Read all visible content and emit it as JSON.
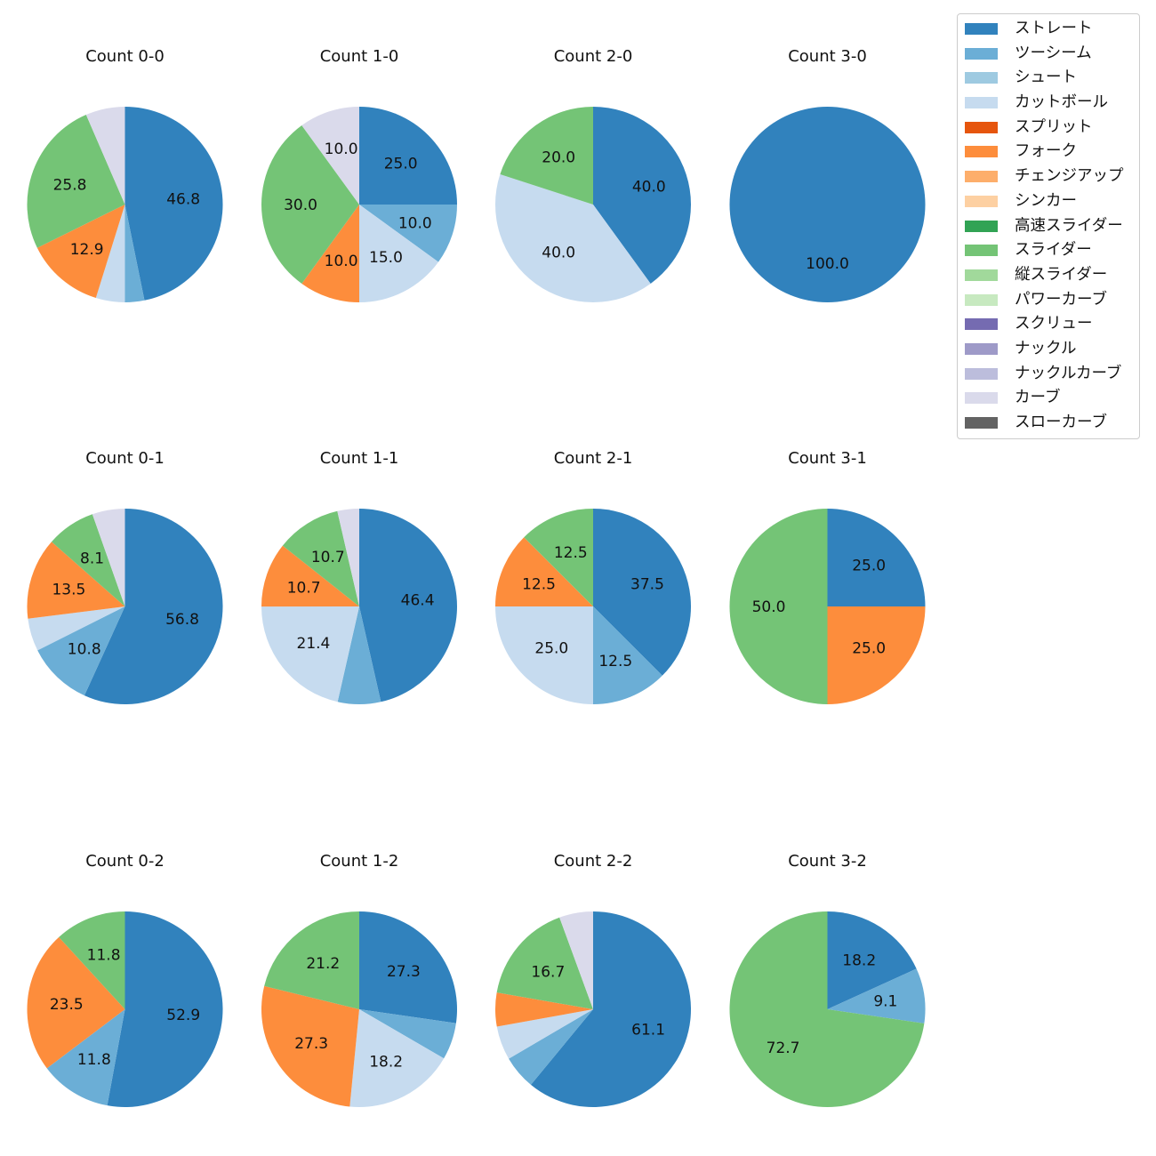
{
  "chart_data": {
    "type": "pie",
    "legend": {
      "placement": "top-right",
      "entries": [
        {
          "name": "ストレート",
          "color": "#3182bd"
        },
        {
          "name": "ツーシーム",
          "color": "#6baed6"
        },
        {
          "name": "シュート",
          "color": "#9ecae1"
        },
        {
          "name": "カットボール",
          "color": "#c6dbef"
        },
        {
          "name": "スプリット",
          "color": "#e6550d"
        },
        {
          "name": "フォーク",
          "color": "#fd8d3c"
        },
        {
          "name": "チェンジアップ",
          "color": "#fdae6b"
        },
        {
          "name": "シンカー",
          "color": "#fdd0a2"
        },
        {
          "name": "高速スライダー",
          "color": "#31a354"
        },
        {
          "name": "スライダー",
          "color": "#74c476"
        },
        {
          "name": "縦スライダー",
          "color": "#a1d99b"
        },
        {
          "name": "パワーカーブ",
          "color": "#c7e9c0"
        },
        {
          "name": "スクリュー",
          "color": "#756bb1"
        },
        {
          "name": "ナックル",
          "color": "#9e9ac8"
        },
        {
          "name": "ナックルカーブ",
          "color": "#bcbddc"
        },
        {
          "name": "カーブ",
          "color": "#dadaeb"
        },
        {
          "name": "スローカーブ",
          "color": "#636363"
        }
      ]
    },
    "charts": [
      {
        "title": "Count 0-0",
        "slices": [
          {
            "pitch": "ストレート",
            "value": 46.8,
            "label": "46.8"
          },
          {
            "pitch": "ツーシーム",
            "value": 3.2,
            "label": ""
          },
          {
            "pitch": "カットボール",
            "value": 4.8,
            "label": ""
          },
          {
            "pitch": "フォーク",
            "value": 12.9,
            "label": "12.9"
          },
          {
            "pitch": "スライダー",
            "value": 25.8,
            "label": "25.8"
          },
          {
            "pitch": "カーブ",
            "value": 6.5,
            "label": ""
          }
        ]
      },
      {
        "title": "Count 1-0",
        "slices": [
          {
            "pitch": "ストレート",
            "value": 25.0,
            "label": "25.0"
          },
          {
            "pitch": "ツーシーム",
            "value": 10.0,
            "label": "10.0"
          },
          {
            "pitch": "カットボール",
            "value": 15.0,
            "label": "15.0"
          },
          {
            "pitch": "フォーク",
            "value": 10.0,
            "label": "10.0"
          },
          {
            "pitch": "スライダー",
            "value": 30.0,
            "label": "30.0"
          },
          {
            "pitch": "カーブ",
            "value": 10.0,
            "label": "10.0"
          }
        ]
      },
      {
        "title": "Count 2-0",
        "slices": [
          {
            "pitch": "ストレート",
            "value": 40.0,
            "label": "40.0"
          },
          {
            "pitch": "カットボール",
            "value": 40.0,
            "label": "40.0"
          },
          {
            "pitch": "スライダー",
            "value": 20.0,
            "label": "20.0"
          }
        ]
      },
      {
        "title": "Count 3-0",
        "slices": [
          {
            "pitch": "ストレート",
            "value": 100.0,
            "label": "100.0"
          }
        ]
      },
      {
        "title": "Count 0-1",
        "slices": [
          {
            "pitch": "ストレート",
            "value": 56.8,
            "label": "56.8"
          },
          {
            "pitch": "ツーシーム",
            "value": 10.8,
            "label": "10.8"
          },
          {
            "pitch": "カットボール",
            "value": 5.4,
            "label": ""
          },
          {
            "pitch": "フォーク",
            "value": 13.5,
            "label": "13.5"
          },
          {
            "pitch": "スライダー",
            "value": 8.1,
            "label": "8.1"
          },
          {
            "pitch": "カーブ",
            "value": 5.4,
            "label": ""
          }
        ]
      },
      {
        "title": "Count 1-1",
        "slices": [
          {
            "pitch": "ストレート",
            "value": 46.4,
            "label": "46.4"
          },
          {
            "pitch": "ツーシーム",
            "value": 7.1,
            "label": ""
          },
          {
            "pitch": "カットボール",
            "value": 21.4,
            "label": "21.4"
          },
          {
            "pitch": "フォーク",
            "value": 10.7,
            "label": "10.7"
          },
          {
            "pitch": "スライダー",
            "value": 10.7,
            "label": "10.7"
          },
          {
            "pitch": "カーブ",
            "value": 3.6,
            "label": ""
          }
        ]
      },
      {
        "title": "Count 2-1",
        "slices": [
          {
            "pitch": "ストレート",
            "value": 37.5,
            "label": "37.5"
          },
          {
            "pitch": "ツーシーム",
            "value": 12.5,
            "label": "12.5"
          },
          {
            "pitch": "カットボール",
            "value": 25.0,
            "label": "25.0"
          },
          {
            "pitch": "フォーク",
            "value": 12.5,
            "label": "12.5"
          },
          {
            "pitch": "スライダー",
            "value": 12.5,
            "label": "12.5"
          }
        ]
      },
      {
        "title": "Count 3-1",
        "slices": [
          {
            "pitch": "ストレート",
            "value": 25.0,
            "label": "25.0"
          },
          {
            "pitch": "フォーク",
            "value": 25.0,
            "label": "25.0"
          },
          {
            "pitch": "スライダー",
            "value": 50.0,
            "label": "50.0"
          }
        ]
      },
      {
        "title": "Count 0-2",
        "slices": [
          {
            "pitch": "ストレート",
            "value": 52.9,
            "label": "52.9"
          },
          {
            "pitch": "ツーシーム",
            "value": 11.8,
            "label": "11.8"
          },
          {
            "pitch": "フォーク",
            "value": 23.5,
            "label": "23.5"
          },
          {
            "pitch": "スライダー",
            "value": 11.8,
            "label": "11.8"
          }
        ]
      },
      {
        "title": "Count 1-2",
        "slices": [
          {
            "pitch": "ストレート",
            "value": 27.3,
            "label": "27.3"
          },
          {
            "pitch": "ツーシーム",
            "value": 6.1,
            "label": ""
          },
          {
            "pitch": "カットボール",
            "value": 18.2,
            "label": "18.2"
          },
          {
            "pitch": "フォーク",
            "value": 27.3,
            "label": "27.3"
          },
          {
            "pitch": "スライダー",
            "value": 21.2,
            "label": "21.2"
          }
        ]
      },
      {
        "title": "Count 2-2",
        "slices": [
          {
            "pitch": "ストレート",
            "value": 61.1,
            "label": "61.1"
          },
          {
            "pitch": "ツーシーム",
            "value": 5.6,
            "label": ""
          },
          {
            "pitch": "カットボール",
            "value": 5.6,
            "label": ""
          },
          {
            "pitch": "フォーク",
            "value": 5.6,
            "label": ""
          },
          {
            "pitch": "スライダー",
            "value": 16.7,
            "label": "16.7"
          },
          {
            "pitch": "カーブ",
            "value": 5.6,
            "label": ""
          }
        ]
      },
      {
        "title": "Count 3-2",
        "slices": [
          {
            "pitch": "ストレート",
            "value": 18.2,
            "label": "18.2"
          },
          {
            "pitch": "ツーシーム",
            "value": 9.1,
            "label": "9.1"
          },
          {
            "pitch": "スライダー",
            "value": 72.7,
            "label": "72.7"
          }
        ]
      }
    ]
  }
}
